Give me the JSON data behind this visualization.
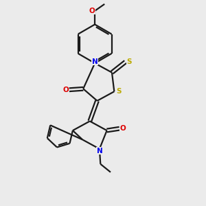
{
  "bg_color": "#ebebeb",
  "bond_color": "#1a1a1a",
  "N_color": "#0000ee",
  "O_color": "#dd0000",
  "S_color": "#bbaa00",
  "lw": 1.6,
  "dbo": 0.08,
  "figsize": [
    3.0,
    3.0
  ],
  "dpi": 100,
  "fs": 7.5,
  "xlim": [
    0,
    10
  ],
  "ylim": [
    0,
    10
  ]
}
